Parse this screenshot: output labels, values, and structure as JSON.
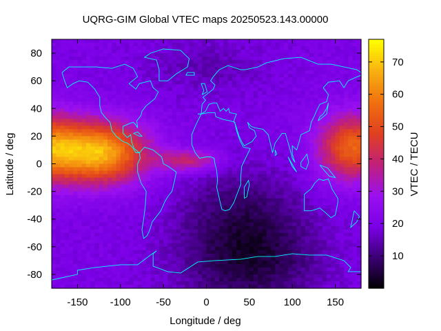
{
  "chart_data": {
    "type": "heatmap",
    "title": "UQRG-GIM Global VTEC maps 20250523.143.00000",
    "xlabel": "Longitude / deg",
    "ylabel": "Latitude / deg",
    "colorbar_label": "VTEC / TECU",
    "xlim": [
      -180,
      180
    ],
    "ylim": [
      -90,
      90
    ],
    "x_ticks": [
      -150,
      -100,
      -50,
      0,
      50,
      100,
      150
    ],
    "y_ticks": [
      -80,
      -60,
      -40,
      -20,
      0,
      20,
      40,
      60,
      80
    ],
    "color_range": [
      0,
      77
    ],
    "colorbar_ticks": [
      10,
      20,
      30,
      40,
      50,
      60,
      70
    ],
    "palette": [
      "#000000",
      "#3a0072",
      "#7a00e6",
      "#9a10f0",
      "#c0207a",
      "#e04020",
      "#f07010",
      "#f8b010",
      "#ffff00"
    ],
    "coastline_color": "#00ffff",
    "features": {
      "background_vtec": 20,
      "peaks": [
        {
          "lon": -125,
          "lat": 8,
          "vtec": 68
        },
        {
          "lon": 170,
          "lat": 12,
          "vtec": 55
        },
        {
          "lon": -20,
          "lat": 2,
          "vtec": 42
        }
      ],
      "lows": [
        {
          "lon": 50,
          "lat": -70,
          "vtec": 5
        },
        {
          "lon": 0,
          "lat": 70,
          "vtec": 15
        }
      ]
    }
  }
}
